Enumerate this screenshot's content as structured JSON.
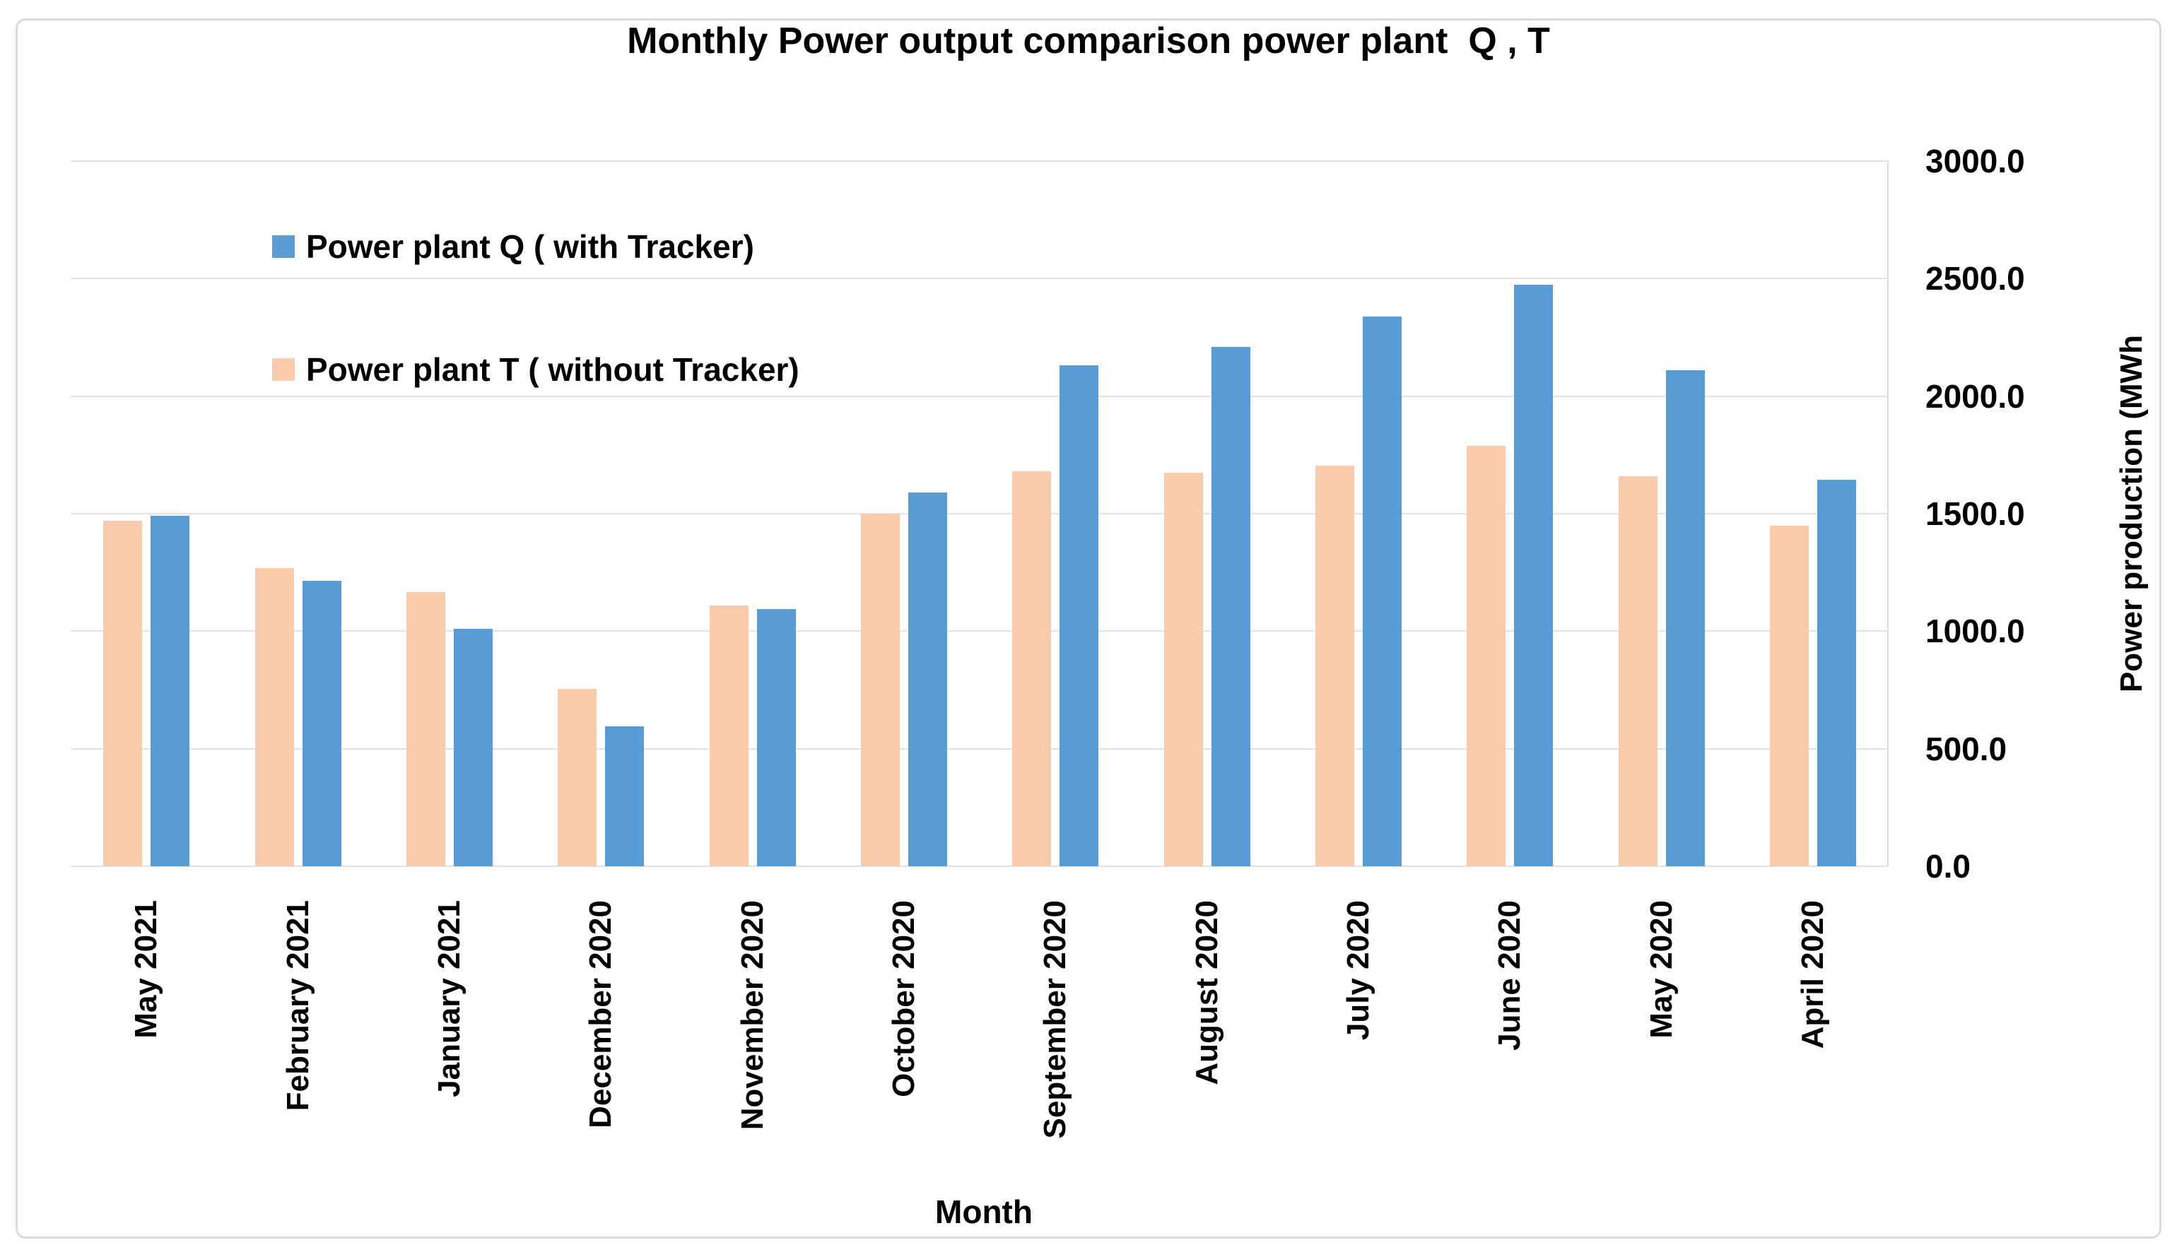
{
  "title": "Monthly Power output comparison power plant  Q , T",
  "legend": {
    "items": [
      {
        "label": "Power plant Q ( with Tracker)",
        "color": "#5B9BD5"
      },
      {
        "label": "Power plant T ( without Tracker)",
        "color": "#F8CBAD"
      }
    ]
  },
  "axes": {
    "y_title": "Power production (MWh",
    "x_title": "Month",
    "yticks": [
      "0.0",
      "500.0",
      "1000.0",
      "1500.0",
      "2000.0",
      "2500.0",
      "3000.0"
    ]
  },
  "chart_data": {
    "type": "bar",
    "title": "Monthly Power output comparison power plant  Q , T",
    "xlabel": "Month",
    "ylabel": "Power production (MWh",
    "ylim": [
      0,
      3000
    ],
    "ytick_step": 500,
    "grid": "horizontal",
    "legend_position": "top-left-inside",
    "categories": [
      "May 2021",
      "February 2021",
      "January 2021",
      "December 2020",
      "November 2020",
      "October 2020",
      "September 2020",
      "August 2020",
      "July 2020",
      "June 2020",
      "May 2020",
      "April 2020"
    ],
    "series": [
      {
        "key": "t",
        "name": "Power plant T ( without Tracker)",
        "color": "#F8CBAD",
        "values": [
          1470,
          1270,
          1165,
          755,
          1110,
          1500,
          1680,
          1675,
          1705,
          1790,
          1660,
          1450
        ]
      },
      {
        "key": "q",
        "name": "Power plant Q ( with Tracker)",
        "color": "#5B9BD5",
        "values": [
          1490,
          1215,
          1010,
          595,
          1095,
          1590,
          2130,
          2210,
          2340,
          2475,
          2110,
          1645
        ]
      }
    ]
  }
}
